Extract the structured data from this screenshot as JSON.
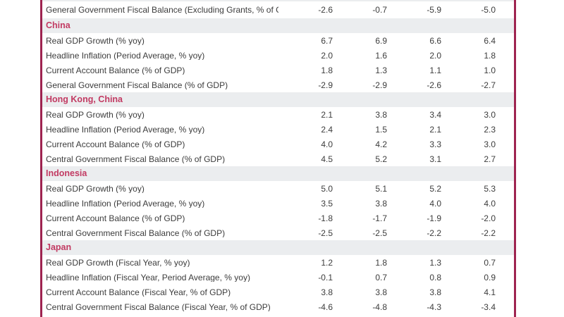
{
  "colors": {
    "accent_border": "#9E2450",
    "country_text": "#C23A62",
    "band_background": "#EBEDEF",
    "row_text": "#3C3C3C",
    "page_background": "#FFFFFF"
  },
  "table": {
    "leading_row": {
      "label": "General Government Fiscal Balance (Excluding Grants, % of GDP)",
      "values": [
        "-2.6",
        "-0.7",
        "-5.9",
        "-5.0"
      ]
    },
    "sections": [
      {
        "country": "China",
        "rows": [
          {
            "label": "Real GDP Growth (% yoy)",
            "values": [
              "6.7",
              "6.9",
              "6.6",
              "6.4"
            ]
          },
          {
            "label": "Headline Inflation (Period Average, % yoy)",
            "values": [
              "2.0",
              "1.6",
              "2.0",
              "1.8"
            ]
          },
          {
            "label": "Current Account Balance (% of GDP)",
            "values": [
              "1.8",
              "1.3",
              "1.1",
              "1.0"
            ]
          },
          {
            "label": "General Government Fiscal Balance (% of GDP)",
            "values": [
              "-2.9",
              "-2.9",
              "-2.6",
              "-2.7"
            ]
          }
        ]
      },
      {
        "country": "Hong Kong, China",
        "rows": [
          {
            "label": "Real GDP Growth (% yoy)",
            "values": [
              "2.1",
              "3.8",
              "3.4",
              "3.0"
            ]
          },
          {
            "label": "Headline Inflation (Period Average, % yoy)",
            "values": [
              "2.4",
              "1.5",
              "2.1",
              "2.3"
            ]
          },
          {
            "label": "Current Account Balance (% of GDP)",
            "values": [
              "4.0",
              "4.2",
              "3.3",
              "3.0"
            ]
          },
          {
            "label": "Central Government Fiscal Balance (% of GDP)",
            "values": [
              "4.5",
              "5.2",
              "3.1",
              "2.7"
            ]
          }
        ]
      },
      {
        "country": "Indonesia",
        "rows": [
          {
            "label": "Real GDP Growth (% yoy)",
            "values": [
              "5.0",
              "5.1",
              "5.2",
              "5.3"
            ]
          },
          {
            "label": "Headline Inflation (Period Average, % yoy)",
            "values": [
              "3.5",
              "3.8",
              "4.0",
              "4.0"
            ]
          },
          {
            "label": "Current Account Balance (% of GDP)",
            "values": [
              "-1.8",
              "-1.7",
              "-1.9",
              "-2.0"
            ]
          },
          {
            "label": "Central Government Fiscal Balance (% of GDP)",
            "values": [
              "-2.5",
              "-2.5",
              "-2.2",
              "-2.2"
            ]
          }
        ]
      },
      {
        "country": "Japan",
        "rows": [
          {
            "label": "Real GDP Growth (Fiscal Year, % yoy)",
            "values": [
              "1.2",
              "1.8",
              "1.3",
              "0.7"
            ]
          },
          {
            "label": "Headline Inflation (Fiscal Year, Period Average, % yoy)",
            "values": [
              "-0.1",
              "0.7",
              "0.8",
              "0.9"
            ]
          },
          {
            "label": "Current Account Balance (Fiscal Year, % of GDP)",
            "values": [
              "3.8",
              "3.8",
              "3.8",
              "4.1"
            ]
          },
          {
            "label": "Central Government Fiscal Balance (Fiscal Year, % of GDP)",
            "values": [
              "-4.6",
              "-4.8",
              "-4.3",
              "-3.4"
            ]
          }
        ]
      }
    ]
  },
  "chart_data": {
    "type": "table",
    "note": "Economic indicator table, year columns cropped out of view above",
    "row_groups": [
      "China",
      "Hong Kong, China",
      "Indonesia",
      "Japan"
    ]
  }
}
